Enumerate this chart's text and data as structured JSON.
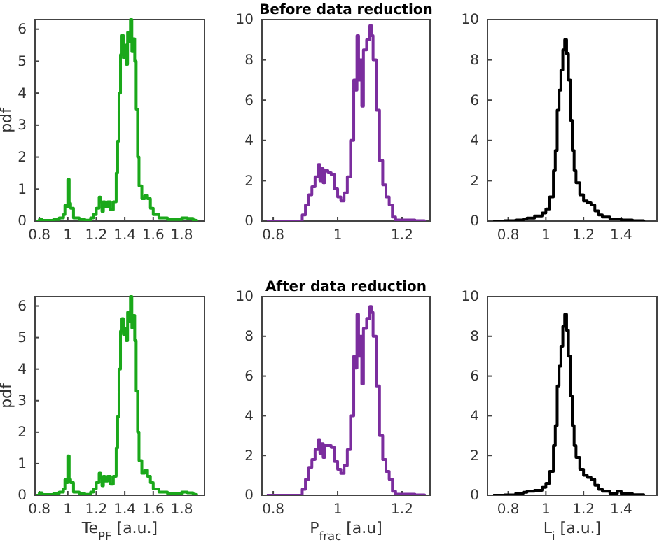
{
  "chart_data": [
    {
      "type": "step",
      "ylabel": "pdf",
      "xlim": [
        0.77,
        1.96
      ],
      "ylim": [
        0,
        6.3
      ],
      "xticks": [
        0.8,
        1,
        1.2,
        1.4,
        1.6,
        1.8
      ],
      "yticks": [
        0,
        1,
        2,
        3,
        4,
        5,
        6
      ],
      "series": [
        {
          "color": "#1aa81a",
          "x": [
            0.78,
            0.8,
            0.82,
            0.86,
            0.9,
            0.94,
            0.97,
            0.98,
            0.99,
            1.0,
            1.01,
            1.02,
            1.04,
            1.08,
            1.12,
            1.16,
            1.18,
            1.2,
            1.22,
            1.23,
            1.24,
            1.25,
            1.26,
            1.28,
            1.3,
            1.32,
            1.34,
            1.35,
            1.36,
            1.37,
            1.38,
            1.39,
            1.4,
            1.41,
            1.42,
            1.43,
            1.44,
            1.45,
            1.46,
            1.47,
            1.48,
            1.49,
            1.5,
            1.52,
            1.54,
            1.56,
            1.58,
            1.6,
            1.64,
            1.7,
            1.76,
            1.8,
            1.84,
            1.88,
            1.9
          ],
          "values": [
            0,
            0.05,
            0.02,
            0.02,
            0.05,
            0.1,
            0.2,
            0.5,
            0.45,
            1.3,
            0.55,
            0.4,
            0.1,
            0.05,
            0.03,
            0.1,
            0.2,
            0.4,
            0.75,
            0.6,
            0.3,
            0.6,
            0.45,
            0.6,
            0.35,
            0.6,
            1.5,
            2.5,
            4.0,
            5.2,
            5.8,
            5.1,
            5.5,
            4.9,
            5.9,
            5.6,
            6.3,
            5.3,
            5.7,
            5.0,
            3.5,
            2.0,
            1.1,
            0.7,
            0.8,
            0.7,
            0.4,
            0.2,
            0.1,
            0.05,
            0.05,
            0.1,
            0.08,
            0.03,
            0
          ]
        }
      ]
    },
    {
      "type": "step",
      "title": "Before data reduction",
      "xlim": [
        0.765,
        1.287
      ],
      "ylim": [
        0,
        10
      ],
      "xticks": [
        0.8,
        1,
        1.2
      ],
      "yticks": [
        0,
        2,
        4,
        6,
        8,
        10
      ],
      "series": [
        {
          "color": "#7b2d9e",
          "x": [
            0.78,
            0.88,
            0.89,
            0.9,
            0.91,
            0.92,
            0.93,
            0.94,
            0.945,
            0.95,
            0.955,
            0.96,
            0.97,
            0.98,
            0.99,
            1.0,
            1.01,
            1.02,
            1.03,
            1.04,
            1.05,
            1.055,
            1.06,
            1.065,
            1.07,
            1.075,
            1.08,
            1.09,
            1.1,
            1.105,
            1.11,
            1.12,
            1.13,
            1.14,
            1.15,
            1.16,
            1.17,
            1.18,
            1.2,
            1.24,
            1.27
          ],
          "values": [
            0,
            0,
            0.3,
            0.8,
            1.3,
            1.7,
            2.2,
            2.8,
            2.0,
            2.6,
            1.9,
            2.5,
            2.4,
            2.3,
            1.6,
            1.2,
            1.0,
            1.4,
            2.2,
            4.0,
            7.0,
            6.5,
            9.2,
            7.0,
            8.0,
            5.7,
            8.5,
            9.0,
            9.7,
            9.2,
            8.0,
            5.5,
            3.0,
            1.8,
            1.2,
            0.8,
            0.2,
            0.05,
            0.05,
            0.02,
            0
          ]
        }
      ]
    },
    {
      "type": "step",
      "xlim": [
        0.69,
        1.59
      ],
      "ylim": [
        0,
        10
      ],
      "xticks": [
        0.8,
        1,
        1.2,
        1.4
      ],
      "yticks": [
        0,
        2,
        4,
        6,
        8,
        10
      ],
      "series": [
        {
          "color": "#000000",
          "x": [
            0.72,
            0.78,
            0.84,
            0.88,
            0.9,
            0.94,
            0.98,
            1.0,
            1.02,
            1.04,
            1.05,
            1.06,
            1.07,
            1.08,
            1.09,
            1.1,
            1.11,
            1.12,
            1.13,
            1.14,
            1.15,
            1.16,
            1.18,
            1.2,
            1.22,
            1.24,
            1.26,
            1.28,
            1.3,
            1.34,
            1.4,
            1.46,
            1.52
          ],
          "values": [
            0,
            0.02,
            0.05,
            0.1,
            0.15,
            0.25,
            0.4,
            0.6,
            1.2,
            2.5,
            3.5,
            5.5,
            6.5,
            7.5,
            8.5,
            9.0,
            8.3,
            7.0,
            5.0,
            3.5,
            2.5,
            1.9,
            1.3,
            1.0,
            0.9,
            0.8,
            0.5,
            0.3,
            0.2,
            0.1,
            0.05,
            0.02,
            0
          ]
        }
      ]
    },
    {
      "type": "step",
      "xlabel": "Te$_{PF}$ [a.u.]",
      "ylabel": "pdf",
      "xlim": [
        0.77,
        1.96
      ],
      "ylim": [
        0,
        6.3
      ],
      "xticks": [
        0.8,
        1,
        1.2,
        1.4,
        1.6,
        1.8
      ],
      "yticks": [
        0,
        1,
        2,
        3,
        4,
        5,
        6
      ],
      "series": [
        {
          "color": "#1aa81a",
          "x": [
            0.78,
            0.8,
            0.82,
            0.86,
            0.9,
            0.94,
            0.97,
            0.98,
            0.99,
            1.0,
            1.01,
            1.02,
            1.04,
            1.08,
            1.12,
            1.16,
            1.18,
            1.2,
            1.22,
            1.23,
            1.24,
            1.25,
            1.26,
            1.28,
            1.3,
            1.32,
            1.34,
            1.35,
            1.36,
            1.37,
            1.38,
            1.39,
            1.4,
            1.41,
            1.42,
            1.43,
            1.44,
            1.45,
            1.46,
            1.47,
            1.48,
            1.49,
            1.5,
            1.52,
            1.54,
            1.56,
            1.58,
            1.6,
            1.64,
            1.7,
            1.76,
            1.8,
            1.84,
            1.88,
            1.9
          ],
          "values": [
            0,
            0.08,
            0.02,
            0.02,
            0.05,
            0.1,
            0.2,
            0.5,
            0.4,
            1.25,
            0.5,
            0.4,
            0.1,
            0.05,
            0.03,
            0.1,
            0.2,
            0.4,
            0.7,
            0.55,
            0.3,
            0.6,
            0.45,
            0.6,
            0.35,
            0.6,
            1.5,
            2.5,
            4.0,
            5.2,
            5.6,
            5.1,
            5.3,
            4.9,
            5.8,
            5.5,
            6.3,
            5.3,
            5.7,
            4.9,
            3.3,
            2.0,
            1.1,
            0.7,
            0.8,
            0.6,
            0.4,
            0.2,
            0.1,
            0.05,
            0.05,
            0.1,
            0.08,
            0.03,
            0
          ]
        }
      ]
    },
    {
      "type": "step",
      "title": "After data reduction",
      "xlabel": "P$_{frac}$ [a.u]",
      "xlim": [
        0.765,
        1.287
      ],
      "ylim": [
        0,
        10
      ],
      "xticks": [
        0.8,
        1,
        1.2
      ],
      "yticks": [
        0,
        2,
        4,
        6,
        8,
        10
      ],
      "series": [
        {
          "color": "#7b2d9e",
          "x": [
            0.78,
            0.88,
            0.89,
            0.9,
            0.91,
            0.92,
            0.93,
            0.94,
            0.945,
            0.95,
            0.955,
            0.96,
            0.97,
            0.98,
            0.99,
            1.0,
            1.01,
            1.02,
            1.03,
            1.04,
            1.05,
            1.055,
            1.06,
            1.065,
            1.07,
            1.075,
            1.08,
            1.09,
            1.1,
            1.105,
            1.11,
            1.12,
            1.13,
            1.14,
            1.15,
            1.16,
            1.17,
            1.18,
            1.2,
            1.24,
            1.27
          ],
          "values": [
            0,
            0,
            0.3,
            0.8,
            1.4,
            1.8,
            2.3,
            2.8,
            2.1,
            2.6,
            1.9,
            2.5,
            2.5,
            2.4,
            1.7,
            1.3,
            1.1,
            1.5,
            2.3,
            4.0,
            7.0,
            6.4,
            9.1,
            7.0,
            8.0,
            5.6,
            8.4,
            8.9,
            9.5,
            9.2,
            8.0,
            5.5,
            3.0,
            1.8,
            1.2,
            0.8,
            0.2,
            0.05,
            0.05,
            0.02,
            0
          ]
        }
      ]
    },
    {
      "type": "step",
      "xlabel": "L$_{i}$ [a.u.]",
      "xlim": [
        0.69,
        1.59
      ],
      "ylim": [
        0,
        10
      ],
      "xticks": [
        0.8,
        1,
        1.2,
        1.4
      ],
      "yticks": [
        0,
        2,
        4,
        6,
        8,
        10
      ],
      "series": [
        {
          "color": "#000000",
          "x": [
            0.72,
            0.78,
            0.84,
            0.88,
            0.9,
            0.94,
            0.98,
            1.0,
            1.02,
            1.04,
            1.05,
            1.06,
            1.07,
            1.08,
            1.09,
            1.1,
            1.11,
            1.12,
            1.13,
            1.14,
            1.15,
            1.16,
            1.18,
            1.2,
            1.22,
            1.24,
            1.26,
            1.28,
            1.3,
            1.34,
            1.38,
            1.4,
            1.46,
            1.52
          ],
          "values": [
            0,
            0.02,
            0.1,
            0.15,
            0.2,
            0.25,
            0.4,
            0.6,
            1.2,
            2.5,
            3.5,
            5.5,
            6.5,
            7.5,
            8.5,
            9.1,
            8.3,
            7.0,
            5.0,
            3.5,
            2.5,
            1.9,
            1.3,
            1.0,
            0.9,
            0.8,
            0.5,
            0.3,
            0.2,
            0.1,
            0.2,
            0.08,
            0.03,
            0
          ]
        }
      ]
    }
  ]
}
